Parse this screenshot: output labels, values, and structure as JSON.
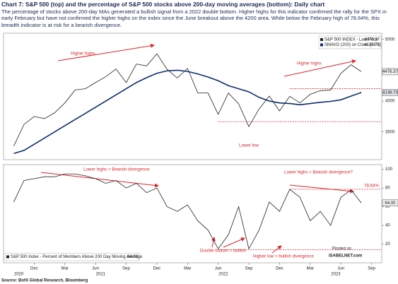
{
  "header": {
    "title": "Chart 7: S&P 500 (top) and the percentage of S&P 500 stocks above 200-day moving averages (bottom): Daily chart",
    "subtitle": "The percentage of stocks above 200-day MAs generated a bullish signal from a 2022 double bottom. Higher highs for this indicator confirmed the rally for the SPX in early February but have not confirmed the higher highs on the index since the June breakout above the 4200 area. While below the February high of 78.64%, this breadth indicator is at risk for a bearish divergence."
  },
  "chart_data": [
    {
      "type": "line",
      "x": [
        "2020-10",
        "2020-11",
        "2020-12",
        "2021-01",
        "2021-02",
        "2021-03",
        "2021-04",
        "2021-05",
        "2021-06",
        "2021-07",
        "2021-08",
        "2021-09",
        "2021-10",
        "2021-11",
        "2021-12",
        "2022-01",
        "2022-02",
        "2022-03",
        "2022-04",
        "2022-05",
        "2022-06",
        "2022-07",
        "2022-08",
        "2022-09",
        "2022-10",
        "2022-11",
        "2022-12",
        "2023-01",
        "2023-02",
        "2023-03",
        "2023-04",
        "2023-05",
        "2023-06",
        "2023-07",
        "2023-08"
      ],
      "xlim": [
        "2020-09",
        "2023-10"
      ],
      "series": [
        {
          "name": "S&P 500 INDEX - Last Price",
          "color": "#222222",
          "values": [
            3270,
            3620,
            3750,
            3715,
            3810,
            3970,
            4180,
            4200,
            4300,
            4395,
            4520,
            4300,
            4600,
            4570,
            4766,
            4515,
            4374,
            4530,
            4132,
            4132,
            3785,
            4130,
            3955,
            3586,
            3872,
            4080,
            3840,
            4077,
            3970,
            4109,
            4169,
            4180,
            4450,
            4589,
            4476.37
          ]
        },
        {
          "name": "SMAVG (200) on Close (SPX)",
          "color": "#0d2c6c",
          "values": [
            3150,
            3200,
            3300,
            3400,
            3500,
            3600,
            3700,
            3800,
            3900,
            4000,
            4100,
            4200,
            4300,
            4380,
            4450,
            4490,
            4500,
            4480,
            4440,
            4390,
            4330,
            4250,
            4200,
            4150,
            4060,
            4000,
            3970,
            3960,
            3940,
            3960,
            3980,
            3995,
            4020,
            4080,
            4138.73
          ]
        }
      ],
      "ylim": [
        3050,
        5100
      ],
      "yticks": [
        3500,
        4000,
        4500,
        5000
      ],
      "reference_lines": [
        {
          "value": 4200,
          "start": "2023-01",
          "color": "#d9262c"
        },
        {
          "value": 3666,
          "start": "2022-06",
          "color": "#d9262c"
        }
      ],
      "annotations": [
        "Higher highs",
        "Higher highs",
        "Lower low"
      ],
      "legend": "top-right"
    },
    {
      "type": "line",
      "x": [
        "2020-10",
        "2020-11",
        "2020-12",
        "2021-01",
        "2021-02",
        "2021-03",
        "2021-04",
        "2021-05",
        "2021-06",
        "2021-07",
        "2021-08",
        "2021-09",
        "2021-10",
        "2021-11",
        "2021-12",
        "2022-01",
        "2022-02",
        "2022-03",
        "2022-04",
        "2022-05",
        "2022-06",
        "2022-07",
        "2022-08",
        "2022-09",
        "2022-10",
        "2022-11",
        "2022-12",
        "2023-01",
        "2023-02",
        "2023-03",
        "2023-04",
        "2023-05",
        "2023-06",
        "2023-07",
        "2023-08"
      ],
      "xlim": [
        "2020-09",
        "2023-10"
      ],
      "series": [
        {
          "name": "S&P 500 Index - Percent of Members Above 200 Day Moving Average",
          "color": "#222222",
          "values": [
            65,
            88,
            90,
            92,
            92,
            95,
            95,
            93,
            90,
            85,
            88,
            80,
            85,
            75,
            80,
            60,
            55,
            62,
            45,
            35,
            15,
            30,
            60,
            15,
            35,
            65,
            55,
            78.64,
            70,
            45,
            55,
            40,
            70,
            78,
            64
          ],
          "last_value_label": "64.00"
        }
      ],
      "ylim": [
        0,
        105
      ],
      "yticks": [
        20,
        40,
        60,
        80,
        100
      ],
      "reference_lines": [
        {
          "value": 78.64,
          "label": "78.64%",
          "start": "2023-01",
          "color": "#d9262c"
        },
        {
          "value": 14,
          "start": "2022-06",
          "color": "#d9262c"
        }
      ],
      "annotations": [
        "Lower highs = Bearish divergence",
        "Lower highs = Bearish divergence?",
        "Double bottom = bullish",
        "Higher low = bullish divergence"
      ],
      "legend": "bottom-left",
      "xticks": [
        {
          "value": "2020-12",
          "label": "Dec"
        },
        {
          "value": "2021-03",
          "label": "Mar"
        },
        {
          "value": "2021-06",
          "label": "Jun"
        },
        {
          "value": "2021-09",
          "label": "Sep"
        },
        {
          "value": "2021-12",
          "label": "Dec"
        },
        {
          "value": "2022-03",
          "label": "Mar"
        },
        {
          "value": "2022-06",
          "label": "Jun"
        },
        {
          "value": "2022-09",
          "label": "Sep"
        },
        {
          "value": "2022-12",
          "label": "Dec"
        },
        {
          "value": "2023-03",
          "label": "Mar"
        },
        {
          "value": "2023-06",
          "label": "Jun"
        },
        {
          "value": "2023-09",
          "label": "Sep"
        }
      ],
      "x_groups": [
        "2020",
        "2021",
        "2022",
        "2023"
      ]
    }
  ],
  "footer": {
    "source": "Source: BofA Global Research, Bloomberg",
    "watermark": [
      "Posted on",
      "ISABELNET.com"
    ]
  }
}
